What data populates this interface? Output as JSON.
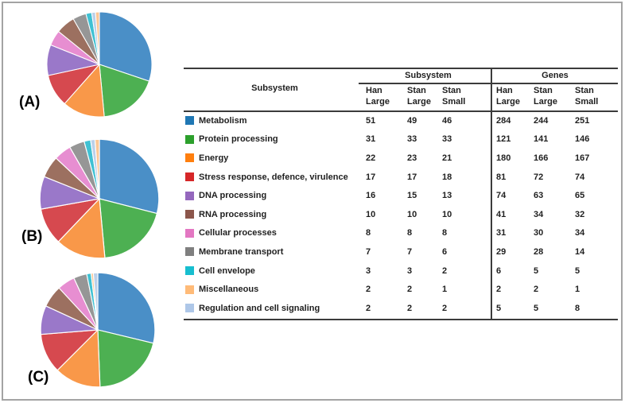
{
  "panel_labels": {
    "a": "(A)",
    "b": "(B)",
    "c": "(C)"
  },
  "table": {
    "col_header_label": "Subsystem",
    "groups": [
      {
        "label": "Subsystem"
      },
      {
        "label": "Genes"
      }
    ],
    "subheaders": [
      {
        "line1": "Han",
        "line2": "Large"
      },
      {
        "line1": "Stan",
        "line2": "Large"
      },
      {
        "line1": "Stan",
        "line2": "Small"
      },
      {
        "line1": "Han",
        "line2": "Large"
      },
      {
        "line1": "Stan",
        "line2": "Large"
      },
      {
        "line1": "Stan",
        "line2": "Small"
      }
    ],
    "rows": [
      {
        "label": "Metabolism",
        "color": "#1f77b4",
        "subsystem": [
          51,
          49,
          46
        ],
        "genes": [
          284,
          244,
          251
        ]
      },
      {
        "label": "Protein processing",
        "color": "#2ca02c",
        "subsystem": [
          31,
          33,
          33
        ],
        "genes": [
          121,
          141,
          146
        ]
      },
      {
        "label": "Energy",
        "color": "#ff7f0e",
        "subsystem": [
          22,
          23,
          21
        ],
        "genes": [
          180,
          166,
          167
        ]
      },
      {
        "label": "Stress response, defence, virulence",
        "color": "#d62728",
        "subsystem": [
          17,
          17,
          18
        ],
        "genes": [
          81,
          72,
          74
        ]
      },
      {
        "label": "DNA processing",
        "color": "#9467bd",
        "subsystem": [
          16,
          15,
          13
        ],
        "genes": [
          74,
          63,
          65
        ]
      },
      {
        "label": "RNA processing",
        "color": "#8c564b",
        "subsystem": [
          10,
          10,
          10
        ],
        "genes": [
          41,
          34,
          32
        ]
      },
      {
        "label": "Cellular processes",
        "color": "#e377c2",
        "subsystem": [
          8,
          8,
          8
        ],
        "genes": [
          31,
          30,
          34
        ]
      },
      {
        "label": "Membrane transport",
        "color": "#7f7f7f",
        "subsystem": [
          7,
          7,
          6
        ],
        "genes": [
          29,
          28,
          14
        ]
      },
      {
        "label": "Cell envelope",
        "color": "#17becf",
        "subsystem": [
          3,
          3,
          2
        ],
        "genes": [
          6,
          5,
          5
        ]
      },
      {
        "label": "Miscellaneous",
        "color": "#ffbb78",
        "subsystem": [
          2,
          2,
          1
        ],
        "genes": [
          2,
          2,
          1
        ]
      },
      {
        "label": "Regulation and cell signaling",
        "color": "#aec7e8",
        "subsystem": [
          2,
          2,
          2
        ],
        "genes": [
          5,
          5,
          8
        ]
      }
    ]
  },
  "chart_data": [
    {
      "type": "pie",
      "title": "(A)",
      "series_name": "Han Large (Subsystem %)",
      "legend_position": "table-right",
      "slices": [
        {
          "label": "Metabolism",
          "value": 51,
          "color": "#4a8fc7"
        },
        {
          "label": "Protein processing",
          "value": 31,
          "color": "#4db052"
        },
        {
          "label": "Energy",
          "value": 22,
          "color": "#f99849"
        },
        {
          "label": "Stress response, defence, virulence",
          "value": 17,
          "color": "#d6494f"
        },
        {
          "label": "DNA processing",
          "value": 16,
          "color": "#9a78c9"
        },
        {
          "label": "Cellular processes",
          "value": 8,
          "color": "#e78ed1"
        },
        {
          "label": "RNA processing",
          "value": 10,
          "color": "#9c7060"
        },
        {
          "label": "Membrane transport",
          "value": 7,
          "color": "#969696"
        },
        {
          "label": "Cell envelope",
          "value": 3,
          "color": "#3fc1d3"
        },
        {
          "label": "Regulation and cell signaling",
          "value": 2,
          "color": "#bad0ea"
        },
        {
          "label": "Miscellaneous",
          "value": 2,
          "color": "#fcc795"
        }
      ]
    },
    {
      "type": "pie",
      "title": "(B)",
      "series_name": "Stan Large (Subsystem %)",
      "legend_position": "table-right",
      "slices": [
        {
          "label": "Metabolism",
          "value": 49,
          "color": "#4a8fc7"
        },
        {
          "label": "Protein processing",
          "value": 33,
          "color": "#4db052"
        },
        {
          "label": "Energy",
          "value": 23,
          "color": "#f99849"
        },
        {
          "label": "Stress response, defence, virulence",
          "value": 17,
          "color": "#d6494f"
        },
        {
          "label": "DNA processing",
          "value": 15,
          "color": "#9a78c9"
        },
        {
          "label": "RNA processing",
          "value": 10,
          "color": "#9c7060"
        },
        {
          "label": "Cellular processes",
          "value": 8,
          "color": "#e78ed1"
        },
        {
          "label": "Membrane transport",
          "value": 7,
          "color": "#969696"
        },
        {
          "label": "Cell envelope",
          "value": 3,
          "color": "#3fc1d3"
        },
        {
          "label": "Regulation and cell signaling",
          "value": 2,
          "color": "#bad0ea"
        },
        {
          "label": "Miscellaneous",
          "value": 2,
          "color": "#fcc795"
        }
      ]
    },
    {
      "type": "pie",
      "title": "(C)",
      "series_name": "Stan Small (Subsystem %)",
      "legend_position": "table-right",
      "slices": [
        {
          "label": "Metabolism",
          "value": 46,
          "color": "#4a8fc7"
        },
        {
          "label": "Protein processing",
          "value": 33,
          "color": "#4db052"
        },
        {
          "label": "Energy",
          "value": 21,
          "color": "#f99849"
        },
        {
          "label": "Stress response, defence, virulence",
          "value": 18,
          "color": "#d6494f"
        },
        {
          "label": "DNA processing",
          "value": 13,
          "color": "#9a78c9"
        },
        {
          "label": "RNA processing",
          "value": 10,
          "color": "#9c7060"
        },
        {
          "label": "Cellular processes",
          "value": 8,
          "color": "#e78ed1"
        },
        {
          "label": "Membrane transport",
          "value": 6,
          "color": "#969696"
        },
        {
          "label": "Cell envelope",
          "value": 2,
          "color": "#3fc1d3"
        },
        {
          "label": "Miscellaneous",
          "value": 1,
          "color": "#fcc795"
        },
        {
          "label": "Regulation and cell signaling",
          "value": 2,
          "color": "#bad0ea"
        }
      ]
    }
  ]
}
